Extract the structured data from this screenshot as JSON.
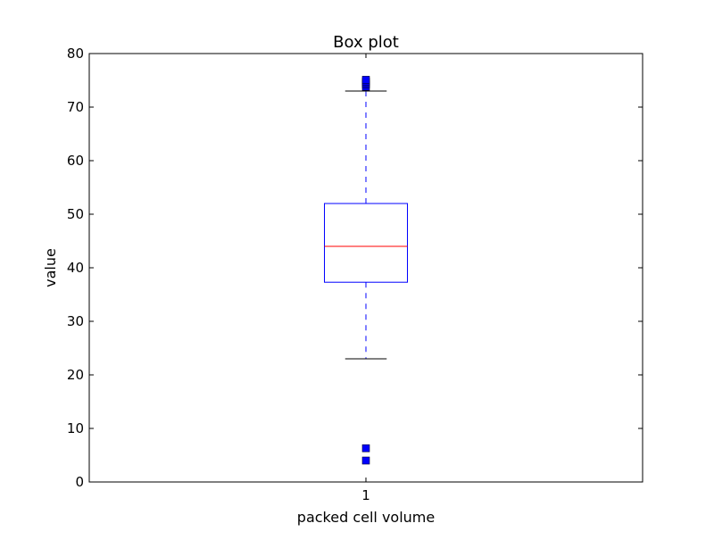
{
  "chart_data": {
    "type": "box",
    "title": "Box plot",
    "xlabel": "packed cell volume",
    "ylabel": "value",
    "ylim": [
      0,
      80
    ],
    "yticks": [
      0,
      10,
      20,
      30,
      40,
      50,
      60,
      70,
      80
    ],
    "categories": [
      "1"
    ],
    "boxes": [
      {
        "category": "1",
        "whisker_low": 23,
        "q1": 37.3,
        "median": 44,
        "q3": 52,
        "whisker_high": 73,
        "outliers": [
          4,
          6.3,
          73.8,
          74.2,
          74.5,
          74.8,
          75.1
        ]
      }
    ],
    "grid": false
  },
  "colors": {
    "box": "#0000ff",
    "median": "#ff0000",
    "whisker": "#0000ff",
    "cap": "#000000",
    "flier_fill": "#0000ff",
    "axis": "#000000"
  }
}
